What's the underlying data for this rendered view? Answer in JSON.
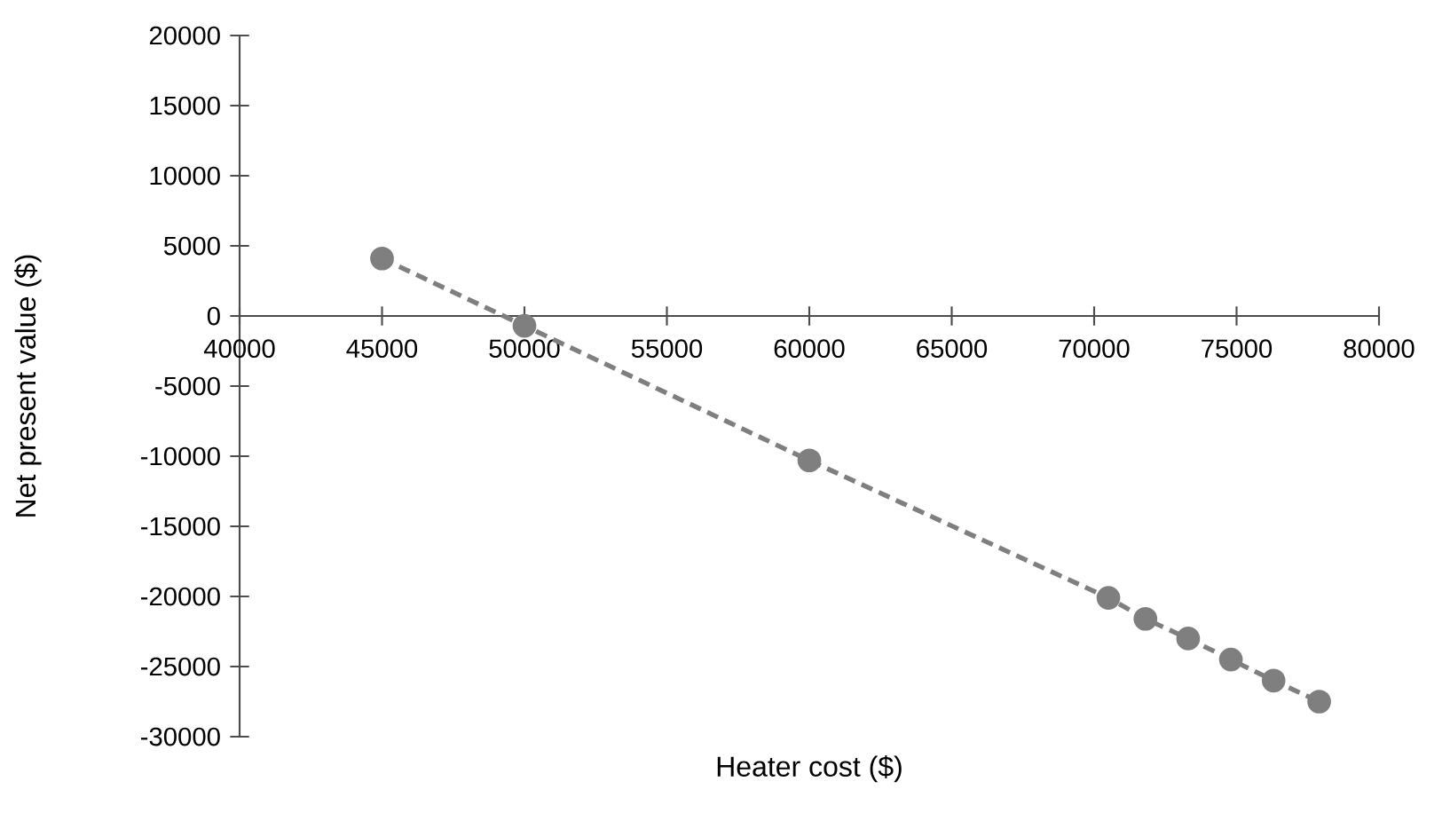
{
  "chart_data": {
    "type": "line",
    "xlabel": "Heater cost ($)",
    "ylabel": "Net present value ($)",
    "series": [
      {
        "color": "#7f7f7f",
        "marker": "circle",
        "line_style": "dashed",
        "x": [
          45000,
          50000,
          60000,
          70500,
          71800,
          73300,
          74800,
          76300,
          77900
        ],
        "values": [
          4100,
          -700,
          -10300,
          -20100,
          -21600,
          -23000,
          -24500,
          -26000,
          -27500
        ]
      }
    ],
    "xlim": [
      40000,
      80000
    ],
    "xticks": [
      40000,
      45000,
      50000,
      55000,
      60000,
      65000,
      70000,
      75000,
      80000
    ],
    "ylim": [
      -30000,
      20000
    ],
    "yticks": [
      -30000,
      -25000,
      -20000,
      -15000,
      -10000,
      -5000,
      0,
      5000,
      10000,
      15000,
      20000
    ]
  }
}
